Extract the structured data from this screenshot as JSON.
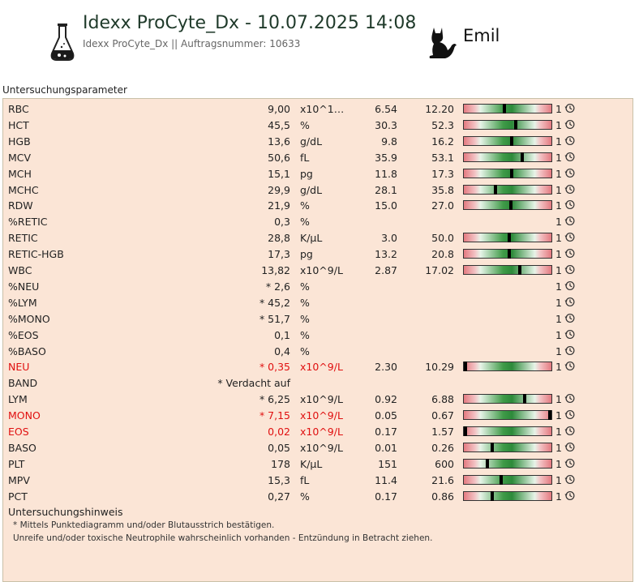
{
  "header": {
    "title": "Idexx ProCyte_Dx - 10.07.2025 14:08",
    "subtitle": "Idexx ProCyte_Dx || Auftragsnummer: 10633",
    "patient_name": "Emil",
    "flask_icon": "lab-flask-icon",
    "patient_icon": "cat-icon"
  },
  "section_label": "Untersuchungsparameter",
  "colors": {
    "flag": "#e01010",
    "panel": "#fbe5d6"
  },
  "rows": [
    {
      "name": "RBC",
      "value": "9,00",
      "unit": "x10^1…",
      "low": "6.54",
      "high": "12.20",
      "bar": 0.46,
      "count": "1",
      "flag": false
    },
    {
      "name": "HCT",
      "value": "45,5",
      "unit": "%",
      "low": "30.3",
      "high": "52.3",
      "bar": 0.59,
      "count": "1",
      "flag": false
    },
    {
      "name": "HGB",
      "value": "13,6",
      "unit": "g/dL",
      "low": "9.8",
      "high": "16.2",
      "bar": 0.55,
      "count": "1",
      "flag": false
    },
    {
      "name": "MCV",
      "value": "50,6",
      "unit": "fL",
      "low": "35.9",
      "high": "53.1",
      "bar": 0.67,
      "count": "1",
      "flag": false
    },
    {
      "name": "MCH",
      "value": "15,1",
      "unit": "pg",
      "low": "11.8",
      "high": "17.3",
      "bar": 0.55,
      "count": "1",
      "flag": false
    },
    {
      "name": "MCHC",
      "value": "29,9",
      "unit": "g/dL",
      "low": "28.1",
      "high": "35.8",
      "bar": 0.36,
      "count": "1",
      "flag": false
    },
    {
      "name": "RDW",
      "value": "21,9",
      "unit": "%",
      "low": "15.0",
      "high": "27.0",
      "bar": 0.54,
      "count": "1",
      "flag": false
    },
    {
      "name": "%RETIC",
      "value": "0,3",
      "unit": "%",
      "low": "",
      "high": "",
      "bar": null,
      "count": "1",
      "flag": false
    },
    {
      "name": "RETIC",
      "value": "28,8",
      "unit": "K/µL",
      "low": "3.0",
      "high": "50.0",
      "bar": 0.52,
      "count": "1",
      "flag": false
    },
    {
      "name": "RETIC-HGB",
      "value": "17,3",
      "unit": "pg",
      "low": "13.2",
      "high": "20.8",
      "bar": 0.52,
      "count": "1",
      "flag": false
    },
    {
      "name": "WBC",
      "value": "13,82",
      "unit": "x10^9/L",
      "low": "2.87",
      "high": "17.02",
      "bar": 0.64,
      "count": "1",
      "flag": false
    },
    {
      "name": "%NEU",
      "value": "* 2,6",
      "unit": "%",
      "low": "",
      "high": "",
      "bar": null,
      "count": "1",
      "flag": false
    },
    {
      "name": "%LYM",
      "value": "* 45,2",
      "unit": "%",
      "low": "",
      "high": "",
      "bar": null,
      "count": "1",
      "flag": false
    },
    {
      "name": "%MONO",
      "value": "* 51,7",
      "unit": "%",
      "low": "",
      "high": "",
      "bar": null,
      "count": "1",
      "flag": false
    },
    {
      "name": "%EOS",
      "value": "0,1",
      "unit": "%",
      "low": "",
      "high": "",
      "bar": null,
      "count": "1",
      "flag": false
    },
    {
      "name": "%BASO",
      "value": "0,4",
      "unit": "%",
      "low": "",
      "high": "",
      "bar": null,
      "count": "1",
      "flag": false
    },
    {
      "name": "NEU",
      "value": "* 0,35",
      "unit": "x10^9/L",
      "low": "2.30",
      "high": "10.29",
      "bar": 0.02,
      "count": "1",
      "flag": true
    },
    {
      "name": "BAND",
      "value": "* Verdacht auf",
      "unit": "",
      "low": "",
      "high": "",
      "bar": null,
      "count": "",
      "flag": false
    },
    {
      "name": "LYM",
      "value": "* 6,25",
      "unit": "x10^9/L",
      "low": "0.92",
      "high": "6.88",
      "bar": 0.69,
      "count": "1",
      "flag": false
    },
    {
      "name": "MONO",
      "value": "* 7,15",
      "unit": "x10^9/L",
      "low": "0.05",
      "high": "0.67",
      "bar": 0.98,
      "count": "1",
      "flag": true
    },
    {
      "name": "EOS",
      "value": "0,02",
      "unit": "x10^9/L",
      "low": "0.17",
      "high": "1.57",
      "bar": 0.02,
      "count": "1",
      "flag": true
    },
    {
      "name": "BASO",
      "value": "0,05",
      "unit": "x10^9/L",
      "low": "0.01",
      "high": "0.26",
      "bar": 0.32,
      "count": "1",
      "flag": false
    },
    {
      "name": "PLT",
      "value": "178",
      "unit": "K/µL",
      "low": "151",
      "high": "600",
      "bar": 0.27,
      "count": "1",
      "flag": false
    },
    {
      "name": "MPV",
      "value": "15,3",
      "unit": "fL",
      "low": "11.4",
      "high": "21.6",
      "bar": 0.43,
      "count": "1",
      "flag": false
    },
    {
      "name": "PCT",
      "value": "0,27",
      "unit": "%",
      "low": "0.17",
      "high": "0.86",
      "bar": 0.32,
      "count": "1",
      "flag": false
    }
  ],
  "hints": {
    "title": "Untersuchungshinweis",
    "lines": [
      "* Mittels Punktediagramm und/oder Blutausstrich bestätigen.",
      "Unreife und/oder toxische Neutrophile wahrscheinlich vorhanden - Entzündung  in Betracht ziehen."
    ]
  }
}
